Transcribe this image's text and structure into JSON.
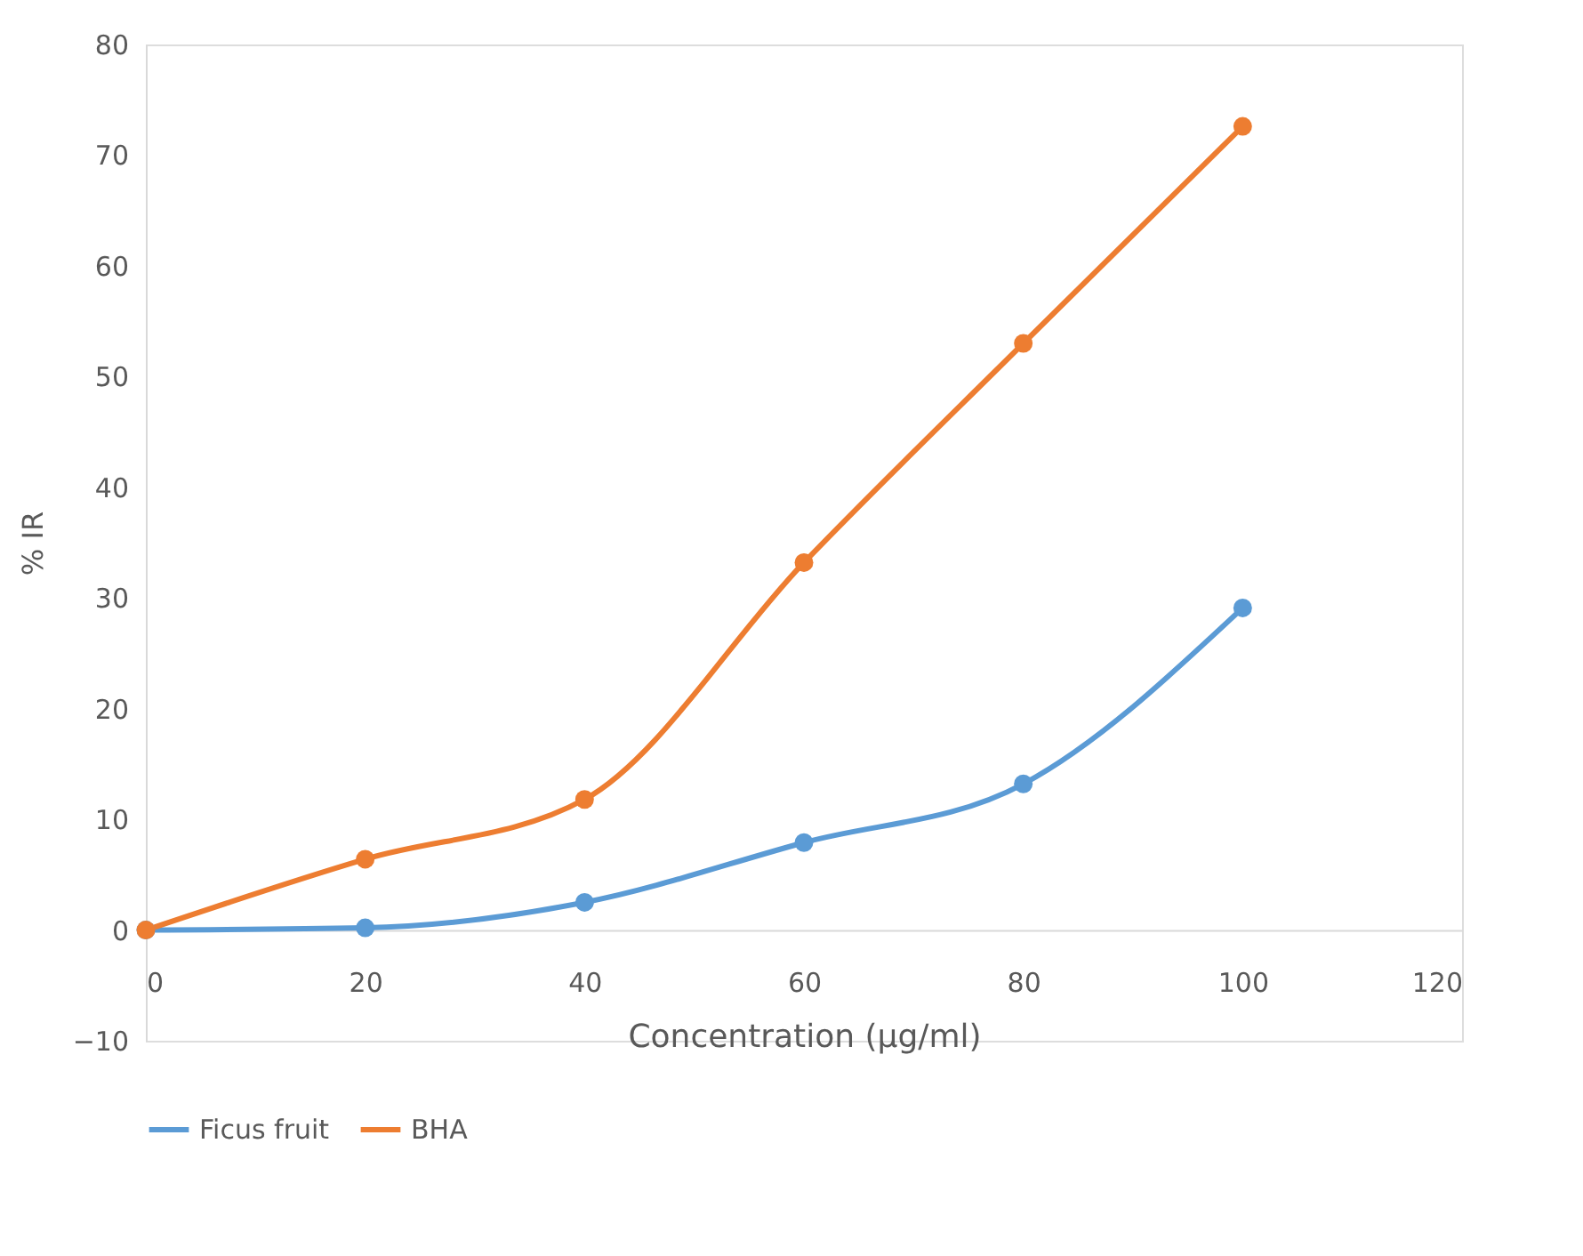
{
  "chart_data": {
    "type": "line",
    "xlabel": "Concentration (µg/ml)",
    "ylabel": "% IR",
    "x": [
      0,
      20,
      40,
      60,
      80,
      100
    ],
    "series": [
      {
        "name": "Ficus fruit",
        "color": "#5b9bd5",
        "values": [
          0,
          0.2,
          2.5,
          7.9,
          13.2,
          29.1
        ]
      },
      {
        "name": "BHA",
        "color": "#ed7d31",
        "values": [
          0,
          6.4,
          11.8,
          33.2,
          53.0,
          72.6
        ]
      }
    ],
    "xlim": [
      0,
      120
    ],
    "xticks": [
      0,
      20,
      40,
      60,
      80,
      100,
      120
    ],
    "ylim": [
      -10,
      80
    ],
    "yticks": [
      -10,
      0,
      10,
      20,
      30,
      40,
      50,
      60,
      70,
      80
    ],
    "grid": false,
    "legend": "bottom",
    "marker": "circle",
    "line_style": "solid"
  }
}
